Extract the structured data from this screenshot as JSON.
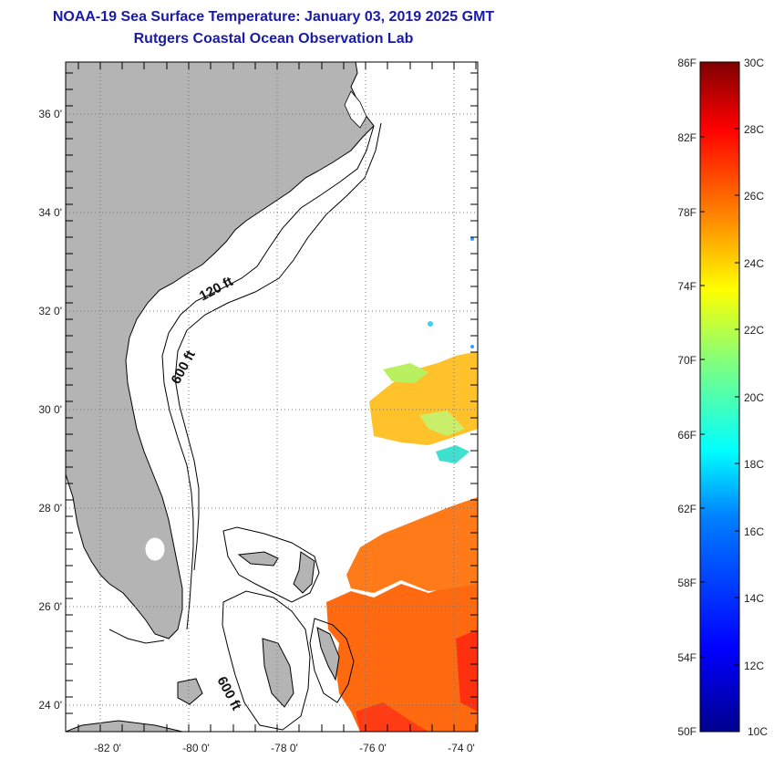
{
  "title": {
    "line1": "NOAA-19 Sea Surface Temperature:  January 03, 2019 2025 GMT",
    "line2": "Rutgers Coastal Ocean Observation Lab"
  },
  "map": {
    "lat_labels": [
      "36 0'",
      "34 0'",
      "32 0'",
      "30 0'",
      "28 0'",
      "26 0'",
      "24 0'"
    ],
    "lon_labels": [
      "-82 0'",
      "-80 0'",
      "-78 0'",
      "-76 0'",
      "-74 0'"
    ],
    "contour_labels": [
      "120 ft",
      "600 ft",
      "600 ft"
    ],
    "colors": {
      "land": "#b4b4b4",
      "coast": "#000000",
      "grid": "#777777"
    }
  },
  "colorbar": {
    "f_labels": [
      "86F",
      "82F",
      "78F",
      "74F",
      "70F",
      "66F",
      "62F",
      "58F",
      "54F",
      "50F"
    ],
    "c_labels": [
      "30C",
      "28C",
      "26C",
      "24C",
      "22C",
      "20C",
      "18C",
      "16C",
      "14C",
      "12C",
      "10C"
    ],
    "colors": [
      "#00008f",
      "#0000ff",
      "#007fff",
      "#00ffff",
      "#7fff7f",
      "#ffff00",
      "#ff7f00",
      "#ff0000",
      "#7f0000"
    ]
  }
}
